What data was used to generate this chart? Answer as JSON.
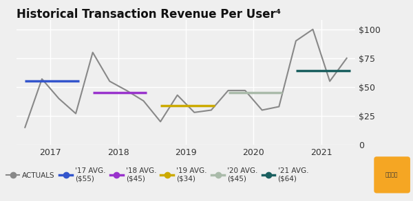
{
  "title": "Historical Transaction Revenue Per User⁴",
  "background_color": "#efefef",
  "plot_bg_color": "#efefef",
  "actuals_y": [
    15,
    57,
    40,
    27,
    80,
    55,
    47,
    38,
    20,
    43,
    28,
    30,
    47,
    47,
    30,
    33,
    90,
    100,
    55,
    75
  ],
  "actuals_color": "#888888",
  "avg_17": {
    "y": 55,
    "x_start": 0,
    "x_end": 3.2,
    "color": "#3355cc"
  },
  "avg_18": {
    "y": 45,
    "x_start": 4,
    "x_end": 7.2,
    "color": "#9933cc"
  },
  "avg_19": {
    "y": 34,
    "x_start": 8,
    "x_end": 11.2,
    "color": "#ccaa00"
  },
  "avg_20": {
    "y": 45,
    "x_start": 12,
    "x_end": 15.2,
    "color": "#aabbaa"
  },
  "avg_21": {
    "y": 64,
    "x_start": 16,
    "x_end": 19.2,
    "color": "#1a5f5f"
  },
  "yticks": [
    0,
    25,
    50,
    75,
    100
  ],
  "ytick_labels": [
    "0",
    "$25",
    "$50",
    "$75",
    "$100"
  ],
  "year_ticks": [
    1.5,
    5.5,
    9.5,
    13.5,
    17.5
  ],
  "xtick_labels": [
    "2017",
    "2018",
    "2019",
    "2020",
    "2021"
  ],
  "legend_actuals_color": "#888888",
  "legend_17_color": "#3355cc",
  "legend_18_color": "#9933cc",
  "legend_19_color": "#ccaa00",
  "legend_20_color": "#aabbaa",
  "legend_21_color": "#1a5f5f",
  "grid_color": "#ffffff",
  "xlim_min": -0.5,
  "xlim_max": 19.5,
  "ylim_min": 0,
  "ylim_max": 108
}
